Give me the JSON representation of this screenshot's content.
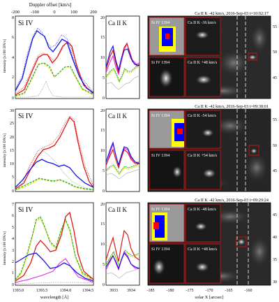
{
  "figure": {
    "top_axis": {
      "label": "Doppler offset [km/s]",
      "ticks": [
        "-200",
        "-100",
        "0",
        "100",
        "200"
      ]
    },
    "bottom_axis": {
      "si_label": "wavelength [Å]",
      "si_ticks": [
        "1393.0",
        "1393.5",
        "1394.0",
        "1394.5"
      ],
      "ca_ticks": [
        "3933",
        "3934"
      ],
      "map_label": "solar X [arcsec]",
      "map_ticks": [
        "-185",
        "-180",
        "-175",
        "-170",
        "-165",
        "-160"
      ]
    },
    "y_axis": {
      "label": "intensity [x100 DN/s]"
    },
    "colors": {
      "blue": "#1515e6",
      "red": "#e01515",
      "green": "#1aa31a",
      "yellow": "#d8d800",
      "magenta": "#e020e0",
      "gray": "#b8b8b8",
      "box": "#d01010"
    },
    "panels": [
      {
        "id": "row1",
        "si_title": "Si IV",
        "ca_title": "Ca II K",
        "map_title": "Ca II K -42 km/s, 2016-Sep-03 t=10:02:17",
        "inset_labels": [
          "Si IV 1394",
          "Ca II K -36 km/s",
          "Si IV 1394",
          "Ca II K +48 km/s"
        ],
        "si_yticks": [
          "0",
          "2",
          "4",
          "6",
          "8"
        ],
        "ca_yticks": [
          "0",
          "5",
          "10",
          "15",
          "20"
        ],
        "map_yticks": [
          "45",
          "50",
          "55"
        ]
      },
      {
        "id": "row2",
        "si_title": "Si IV",
        "ca_title": "Ca II K",
        "map_title": "Ca II K -42 km/s, 2016-Sep-03 t=09:38:01",
        "inset_labels": [
          "Si IV 1394",
          "Ca II K -54 km/s",
          "Si IV 1394",
          "Ca II K +54 km/s"
        ],
        "si_yticks": [
          "0",
          "5",
          "10",
          "15",
          "20",
          "25",
          "30"
        ],
        "ca_yticks": [
          "0",
          "5",
          "10",
          "15",
          "20"
        ],
        "map_yticks": [
          "45",
          "50",
          "55"
        ]
      },
      {
        "id": "row3",
        "si_title": "Si IV",
        "ca_title": "Ca II K",
        "map_title": "Ca II K -42 km/s, 2016-Sep-03 t=09:29:24",
        "inset_labels": [
          "Si IV 1394",
          "Ca II K -48 km/s",
          "Si IV 1394",
          "Ca II K +48 km/s"
        ],
        "si_yticks": [
          "0",
          "1",
          "2",
          "3",
          "4",
          "5",
          "6",
          "7"
        ],
        "ca_yticks": [
          "0",
          "5",
          "10",
          "15",
          "20"
        ],
        "map_yticks": [
          "30",
          "35",
          "40",
          "45"
        ]
      }
    ]
  }
}
